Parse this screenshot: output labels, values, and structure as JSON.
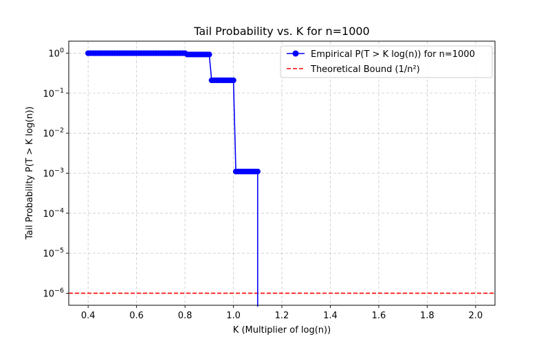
{
  "chart_data": {
    "type": "line",
    "title": "Tail Probability vs. K for n=1000",
    "xlabel": "K (Multiplier of log(n))",
    "ylabel": "Tail Probability P(T > K log(n))",
    "y_scale": "log",
    "xlim": [
      0.32,
      2.08
    ],
    "ylim": [
      5e-07,
      2
    ],
    "x_ticks": [
      "0.4",
      "0.6",
      "0.8",
      "1.0",
      "1.2",
      "1.4",
      "1.6",
      "1.8",
      "2.0"
    ],
    "x_tick_values": [
      0.4,
      0.6,
      0.8,
      1.0,
      1.2,
      1.4,
      1.6,
      1.8,
      2.0
    ],
    "y_tick_values": [
      1,
      0.1,
      0.01,
      0.001,
      0.0001,
      1e-05,
      1e-06
    ],
    "y_ticks": [
      {
        "base": "10",
        "exp": "0"
      },
      {
        "base": "10",
        "exp": "−1"
      },
      {
        "base": "10",
        "exp": "−2"
      },
      {
        "base": "10",
        "exp": "−3"
      },
      {
        "base": "10",
        "exp": "−4"
      },
      {
        "base": "10",
        "exp": "−5"
      },
      {
        "base": "10",
        "exp": "−6"
      }
    ],
    "grid": true,
    "legend_position": "top-right",
    "series": [
      {
        "name": "Empirical P(T > K log(n)) for n=1000",
        "color": "#0000ff",
        "style": "solid line with circle markers",
        "segments": [
          {
            "x_start": 0.4,
            "x_end": 0.8,
            "y": 1.0
          },
          {
            "x_start": 0.81,
            "x_end": 0.9,
            "y": 0.93
          },
          {
            "x_start": 0.91,
            "x_end": 1.0,
            "y": 0.21
          },
          {
            "x_start": 1.01,
            "x_end": 1.1,
            "y": 0.0011
          }
        ],
        "drop_to_zero_at": 1.1
      },
      {
        "name": "Theoretical Bound (1/n²)",
        "color": "#ff0000",
        "style": "dashed horizontal line",
        "y": 1e-06
      }
    ]
  }
}
